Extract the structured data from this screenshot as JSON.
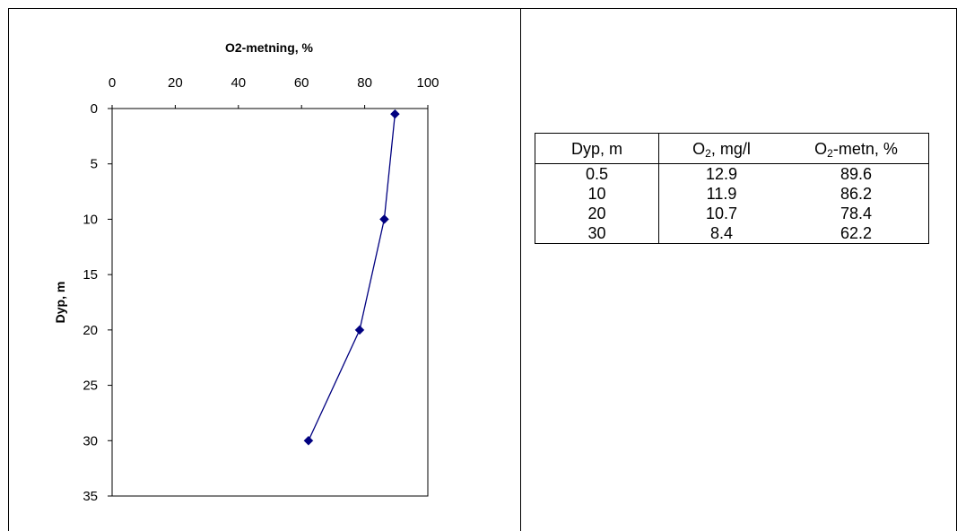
{
  "chart_data": {
    "type": "line",
    "xlabel": "O2-metning, %",
    "ylabel": "Dyp, m",
    "x_axis_position": "top",
    "y_axis_inverted": true,
    "xlim": [
      0,
      100
    ],
    "ylim": [
      0,
      35
    ],
    "x_ticks": [
      "0",
      "20",
      "40",
      "60",
      "80",
      "100"
    ],
    "y_ticks": [
      "0",
      "5",
      "10",
      "15",
      "20",
      "25",
      "30",
      "35"
    ],
    "series": [
      {
        "marker": "diamond",
        "color": "#000080",
        "points": [
          {
            "x": 89.6,
            "y": 0.5
          },
          {
            "x": 86.2,
            "y": 10
          },
          {
            "x": 78.4,
            "y": 20
          },
          {
            "x": 62.2,
            "y": 30
          }
        ]
      }
    ],
    "grid": false,
    "legend": "none"
  },
  "table": {
    "headers": [
      {
        "main": "Dyp, m",
        "sub": "",
        "rest": ""
      },
      {
        "main": "O",
        "sub": "2",
        "rest": ", mg/l"
      },
      {
        "main": "O",
        "sub": "2",
        "rest": "-metn, %"
      }
    ],
    "rows": [
      [
        "0.5",
        "12.9",
        "89.6"
      ],
      [
        "10",
        "11.9",
        "86.2"
      ],
      [
        "20",
        "10.7",
        "78.4"
      ],
      [
        "30",
        "8.4",
        "62.2"
      ]
    ]
  }
}
